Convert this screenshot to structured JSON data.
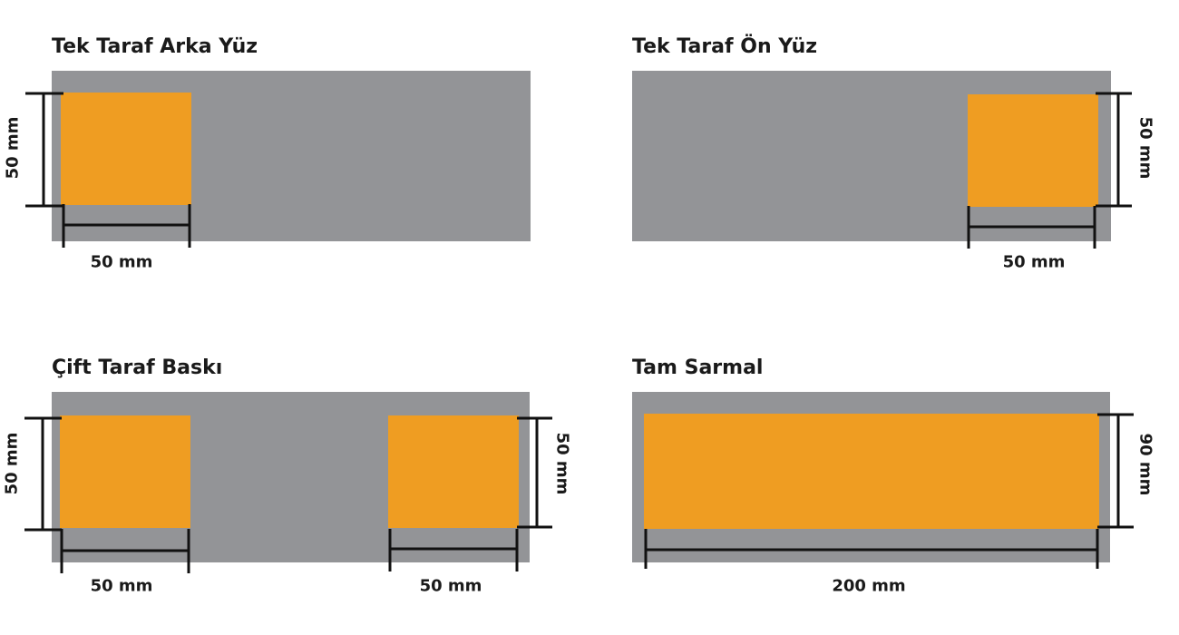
{
  "colors": {
    "surface": "#939497",
    "print_area": "#ef9d22",
    "dimension_line": "#111111"
  },
  "panels": [
    {
      "id": "tek-taraf-arka-yuz",
      "title": "Tek Taraf Arka Yüz",
      "width_label": "50 mm",
      "height_label": "50 mm"
    },
    {
      "id": "tek-taraf-on-yuz",
      "title": "Tek Taraf Ön Yüz",
      "width_label": "50 mm",
      "height_label": "50 mm"
    },
    {
      "id": "cift-taraf-baski",
      "title": "Çift Taraf Baskı",
      "left_width_label": "50 mm",
      "left_height_label": "50 mm",
      "right_width_label": "50 mm",
      "right_height_label": "50 mm"
    },
    {
      "id": "tam-sarmal",
      "title": "Tam Sarmal",
      "width_label": "200 mm",
      "height_label": "90 mm"
    }
  ]
}
